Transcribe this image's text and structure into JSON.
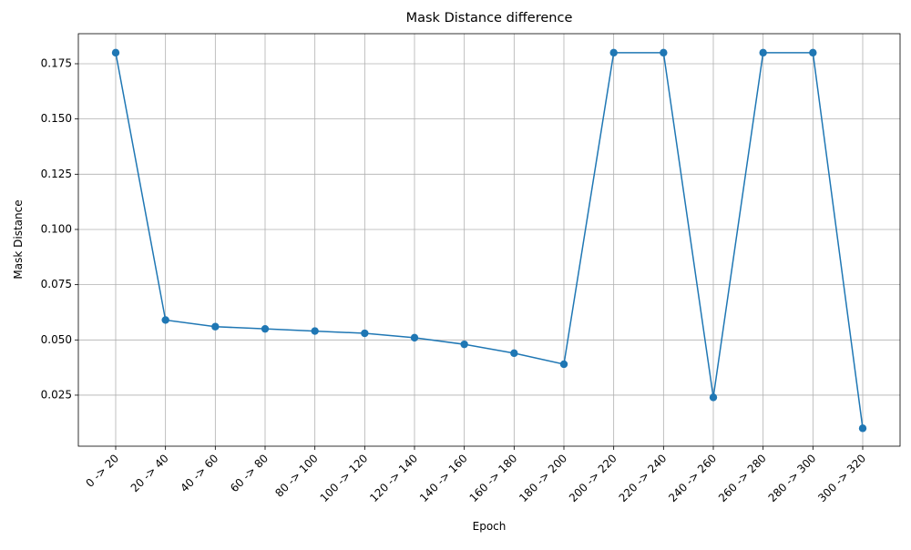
{
  "chart_data": {
    "type": "line",
    "title": "Mask Distance difference",
    "xlabel": "Epoch",
    "ylabel": "Mask Distance",
    "categories": [
      "0 -> 20",
      "20 -> 40",
      "40 -> 60",
      "60 -> 80",
      "80 -> 100",
      "100 -> 120",
      "120 -> 140",
      "140 -> 160",
      "160 -> 180",
      "180 -> 200",
      "200 -> 220",
      "220 -> 240",
      "240 -> 260",
      "260 -> 280",
      "280 -> 300",
      "300 -> 320"
    ],
    "series": [
      {
        "name": "Mask Distance",
        "color": "#1f77b4",
        "values": [
          0.18,
          0.059,
          0.056,
          0.055,
          0.054,
          0.053,
          0.051,
          0.048,
          0.044,
          0.039,
          0.18,
          0.18,
          0.024,
          0.18,
          0.18,
          0.01
        ]
      }
    ],
    "ylim": [
      0.0019,
      0.1886
    ],
    "yticks": [
      0.025,
      {
        "value": 0.05,
        "label": "0.050"
      },
      0.075,
      {
        "value": 0.1,
        "label": "0.100"
      },
      0.125,
      {
        "value": 0.15,
        "label": "0.150"
      },
      0.175
    ],
    "grid": true
  }
}
